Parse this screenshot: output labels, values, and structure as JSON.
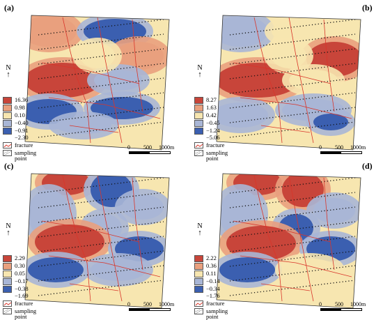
{
  "colors": {
    "class1": "#c8453a",
    "class2": "#e9a07e",
    "class3": "#f7e6b0",
    "class4": "#a9b6d6",
    "class5": "#3b5fb0",
    "fracture": "#d9352a"
  },
  "common": {
    "north": "N",
    "fracture_label": "fracture",
    "sampling_label_1": "sampling",
    "sampling_label_2": "point",
    "scale": {
      "t0": "0",
      "t1": "500",
      "t2": "1000m"
    }
  },
  "panels": [
    {
      "label": "(a)",
      "legend": [
        "16.36",
        "0.98",
        "0.10",
        "−0.40",
        "−0.91",
        "−2.30"
      ]
    },
    {
      "label": "(b)",
      "legend": [
        "8.27",
        "1.63",
        "0.42",
        "−0.45",
        "−1.24",
        "−5.06"
      ]
    },
    {
      "label": "(c)",
      "legend": [
        "2.29",
        "0.30",
        "0.05",
        "−0.17",
        "−0.38",
        "−1.69"
      ]
    },
    {
      "label": "(d)",
      "legend": [
        "2.22",
        "0.36",
        "0.11",
        "−0.14",
        "−0.34",
        "−1.76"
      ]
    }
  ]
}
